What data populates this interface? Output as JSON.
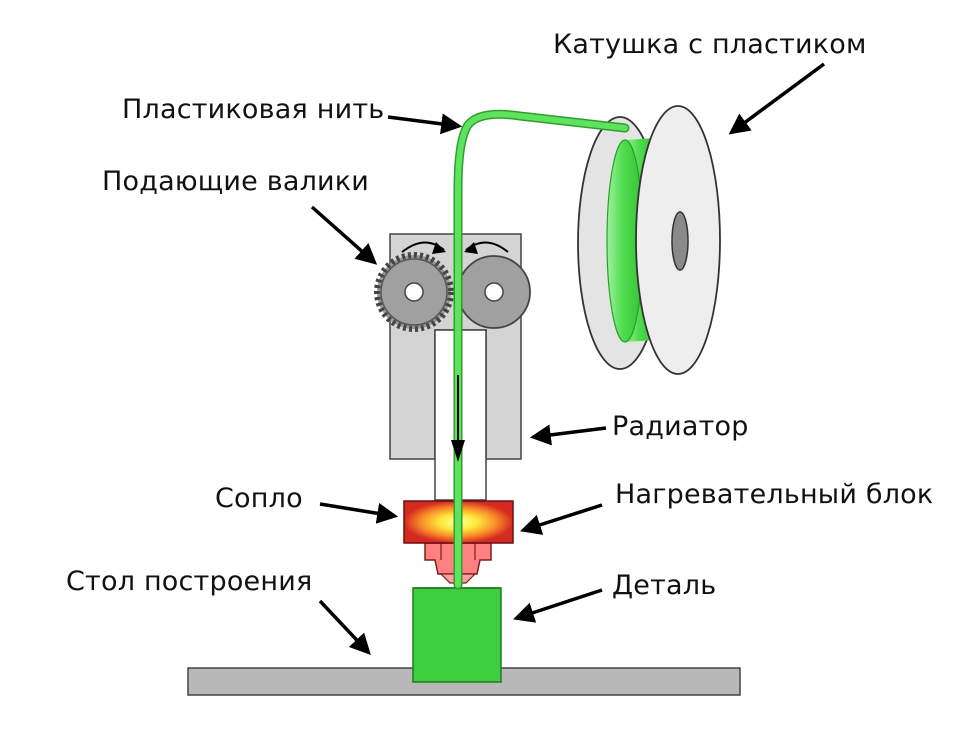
{
  "labels": {
    "spool": "Катушка с пластиком",
    "filament": "Пластиковая нить",
    "feed_rollers": "Подающие валики",
    "radiator": "Радиатор",
    "nozzle": "Сопло",
    "heater_block": "Нагревательный блок",
    "build_table": "Стол построения",
    "part": "Деталь"
  },
  "colors": {
    "filament": "#55e055",
    "part": "#3ecf3e",
    "radiator": "#d4d4d4",
    "heater_block": "#d42a22",
    "heater_glow": "#ffee40",
    "nozzle": "#ff8080",
    "spool_disc": "#eeeeee",
    "build_table": "#b8b8b8"
  }
}
